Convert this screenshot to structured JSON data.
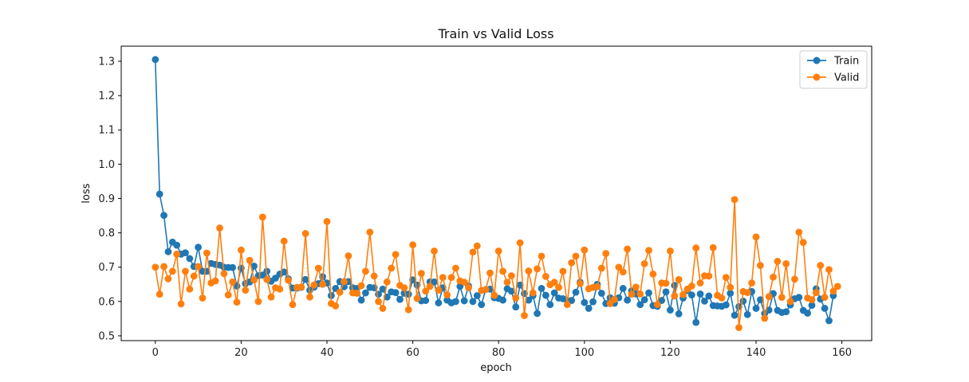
{
  "chart_data": {
    "type": "line",
    "title": "Train vs Valid Loss",
    "xlabel": "epoch",
    "ylabel": "loss",
    "xlim": [
      -7.95,
      166.95
    ],
    "ylim": [
      0.486,
      1.344
    ],
    "xticks": [
      0,
      20,
      40,
      60,
      80,
      100,
      120,
      140,
      160
    ],
    "yticks": [
      0.5,
      0.6,
      0.7,
      0.8,
      0.9,
      1.0,
      1.1,
      1.2,
      1.3
    ],
    "ytick_labels": [
      "0.5",
      "0.6",
      "0.7",
      "0.8",
      "0.9",
      "1.0",
      "1.1",
      "1.2",
      "1.3"
    ],
    "grid": false,
    "legend_position": "top-right",
    "series": [
      {
        "name": "Train",
        "color": "#1f77b4",
        "marker": "circle",
        "values": [
          1.305,
          0.913,
          0.851,
          0.745,
          0.773,
          0.764,
          0.738,
          0.742,
          0.725,
          0.702,
          0.758,
          0.688,
          0.688,
          0.711,
          0.708,
          0.706,
          0.7,
          0.699,
          0.699,
          0.645,
          0.697,
          0.652,
          0.657,
          0.703,
          0.675,
          0.677,
          0.688,
          0.659,
          0.668,
          0.68,
          0.686,
          0.666,
          0.639,
          0.639,
          0.641,
          0.664,
          0.633,
          0.642,
          0.652,
          0.672,
          0.654,
          0.617,
          0.638,
          0.658,
          0.643,
          0.658,
          0.64,
          0.638,
          0.604,
          0.625,
          0.641,
          0.64,
          0.621,
          0.636,
          0.613,
          0.628,
          0.626,
          0.606,
          0.624,
          0.621,
          0.663,
          0.648,
          0.602,
          0.603,
          0.657,
          0.657,
          0.596,
          0.64,
          0.604,
          0.596,
          0.6,
          0.644,
          0.602,
          0.645,
          0.6,
          0.617,
          0.591,
          0.635,
          0.636,
          0.611,
          0.609,
          0.604,
          0.637,
          0.63,
          0.584,
          0.648,
          0.623,
          0.604,
          0.617,
          0.565,
          0.638,
          0.618,
          0.591,
          0.625,
          0.61,
          0.608,
          0.603,
          0.603,
          0.627,
          0.656,
          0.597,
          0.58,
          0.599,
          0.65,
          0.624,
          0.594,
          0.611,
          0.595,
          0.611,
          0.638,
          0.604,
          0.631,
          0.622,
          0.591,
          0.605,
          0.625,
          0.588,
          0.586,
          0.603,
          0.628,
          0.575,
          0.647,
          0.564,
          0.61,
          0.632,
          0.619,
          0.539,
          0.622,
          0.601,
          0.616,
          0.588,
          0.587,
          0.586,
          0.59,
          0.624,
          0.56,
          0.585,
          0.601,
          0.562,
          0.629,
          0.58,
          0.605,
          0.565,
          0.575,
          0.623,
          0.574,
          0.568,
          0.57,
          0.59,
          0.608,
          0.612,
          0.574,
          0.566,
          0.589,
          0.637,
          0.607,
          0.58,
          0.544,
          0.617
        ]
      },
      {
        "name": "Valid",
        "color": "#ff7f0e",
        "marker": "circle",
        "values": [
          0.7,
          0.621,
          0.702,
          0.666,
          0.688,
          0.738,
          0.593,
          0.688,
          0.636,
          0.674,
          0.702,
          0.61,
          0.741,
          0.654,
          0.66,
          0.814,
          0.681,
          0.619,
          0.657,
          0.598,
          0.75,
          0.633,
          0.72,
          0.663,
          0.6,
          0.846,
          0.664,
          0.613,
          0.64,
          0.636,
          0.776,
          0.662,
          0.591,
          0.641,
          0.642,
          0.798,
          0.613,
          0.648,
          0.697,
          0.65,
          0.833,
          0.594,
          0.587,
          0.627,
          0.658,
          0.733,
          0.625,
          0.624,
          0.646,
          0.688,
          0.802,
          0.674,
          0.6,
          0.58,
          0.657,
          0.697,
          0.737,
          0.647,
          0.64,
          0.576,
          0.765,
          0.609,
          0.682,
          0.63,
          0.644,
          0.747,
          0.633,
          0.67,
          0.619,
          0.67,
          0.697,
          0.66,
          0.656,
          0.64,
          0.744,
          0.762,
          0.632,
          0.635,
          0.683,
          0.618,
          0.747,
          0.688,
          0.656,
          0.675,
          0.61,
          0.771,
          0.559,
          0.689,
          0.625,
          0.695,
          0.732,
          0.673,
          0.649,
          0.656,
          0.641,
          0.688,
          0.591,
          0.713,
          0.732,
          0.652,
          0.75,
          0.637,
          0.641,
          0.643,
          0.697,
          0.74,
          0.594,
          0.606,
          0.7,
          0.686,
          0.753,
          0.621,
          0.642,
          0.622,
          0.71,
          0.749,
          0.68,
          0.591,
          0.654,
          0.653,
          0.747,
          0.616,
          0.664,
          0.62,
          0.636,
          0.645,
          0.756,
          0.654,
          0.675,
          0.674,
          0.757,
          0.618,
          0.61,
          0.67,
          0.641,
          0.897,
          0.524,
          0.629,
          0.626,
          0.654,
          0.788,
          0.705,
          0.551,
          0.614,
          0.671,
          0.717,
          0.612,
          0.71,
          0.6,
          0.665,
          0.802,
          0.772,
          0.61,
          0.605,
          0.626,
          0.705,
          0.612,
          0.693,
          0.63,
          0.644
        ]
      }
    ]
  }
}
